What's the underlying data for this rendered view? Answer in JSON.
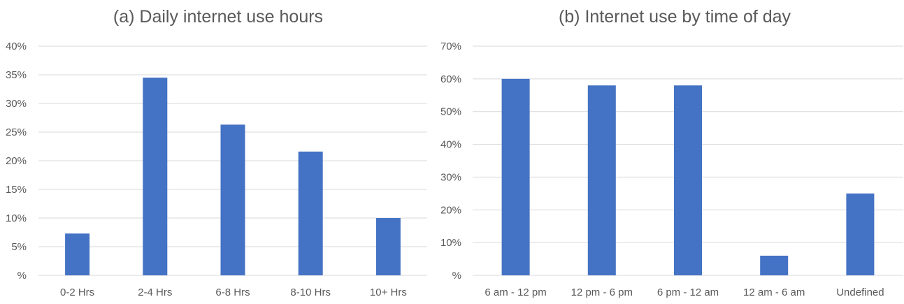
{
  "chart_data": [
    {
      "type": "bar",
      "title": "(a) Daily internet use hours",
      "categories": [
        "0-2 Hrs",
        "2-4 Hrs",
        "6-8 Hrs",
        "8-10 Hrs",
        "10+ Hrs"
      ],
      "values": [
        7.3,
        34.5,
        26.3,
        21.6,
        10.0
      ],
      "ylim": [
        0,
        40
      ],
      "ytick_labels": [
        "%",
        "5%",
        "10%",
        "15%",
        "20%",
        "25%",
        "30%",
        "35%",
        "40%"
      ],
      "grid": true,
      "bar_color": "#4472C4"
    },
    {
      "type": "bar",
      "title": "(b) Internet use by time of day",
      "categories": [
        "6 am - 12 pm",
        "12 pm - 6 pm",
        "6 pm - 12 am",
        "12 am - 6 am",
        "Undefined"
      ],
      "values": [
        60,
        58,
        58,
        6,
        25
      ],
      "ylim": [
        0,
        70
      ],
      "ytick_labels": [
        "%",
        "10%",
        "20%",
        "30%",
        "40%",
        "50%",
        "60%",
        "70%"
      ],
      "grid": true,
      "bar_color": "#4472C4"
    }
  ]
}
